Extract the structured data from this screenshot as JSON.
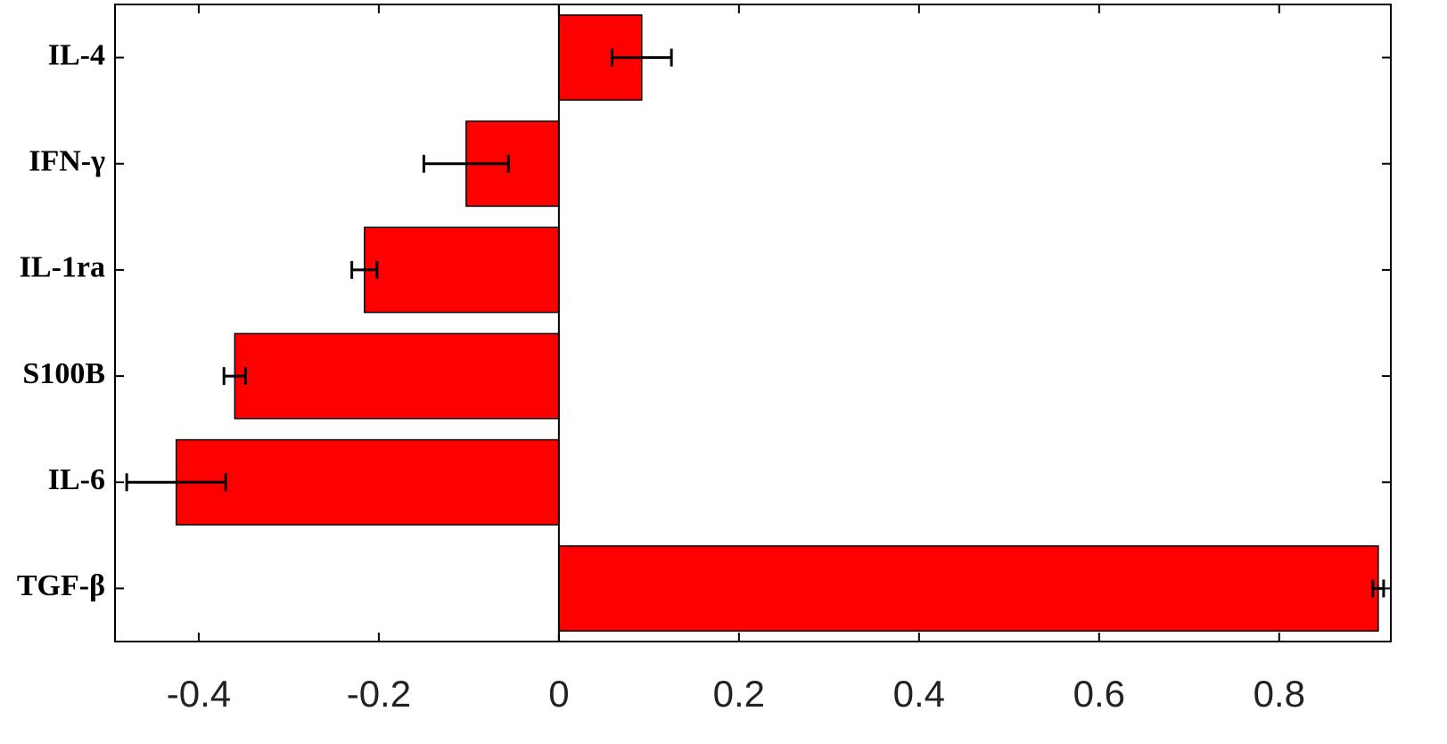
{
  "chart_data": {
    "type": "barh",
    "categories": [
      "IL-4",
      "IFN-γ",
      "IL-1ra",
      "S100B",
      "IL-6",
      "TGF-β"
    ],
    "values": [
      0.092,
      -0.103,
      -0.216,
      -0.36,
      -0.425,
      0.91
    ],
    "errors": [
      0.033,
      0.047,
      0.014,
      0.012,
      0.055,
      0.006
    ],
    "color": "#ff0000",
    "xlim": [
      -0.493,
      0.924
    ],
    "xticks": [
      -0.4,
      -0.2,
      0,
      0.2,
      0.4,
      0.6,
      0.8
    ]
  }
}
